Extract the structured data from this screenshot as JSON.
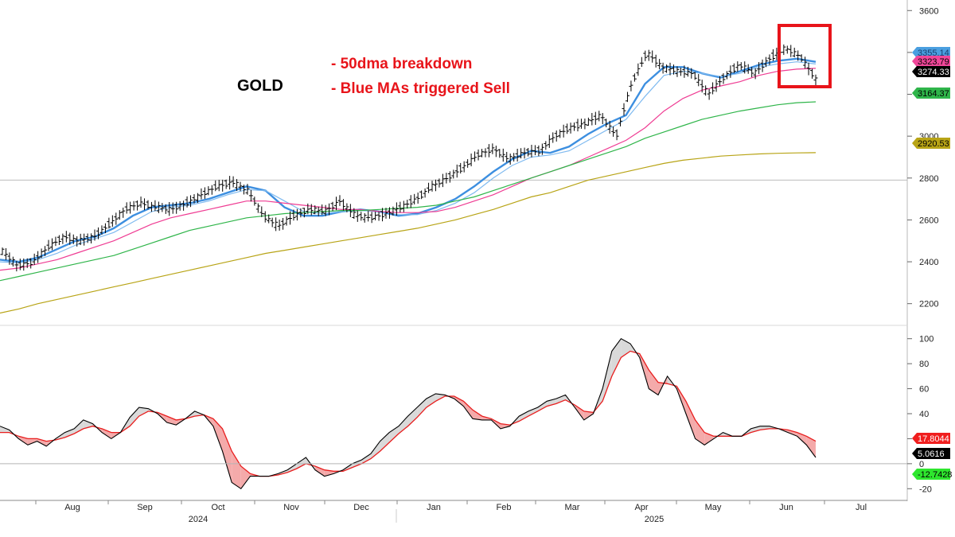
{
  "chart_data": [
    {
      "type": "ohlc-bar",
      "title": "GOLD",
      "annotations": [
        "- 50dma breakdown",
        "- Blue MAs triggered Sell"
      ],
      "ylim": [
        2100,
        3620
      ],
      "y_ticks": [
        2200,
        2400,
        2600,
        2800,
        3000,
        3200,
        3400,
        3600
      ],
      "x_ticks": [
        "Aug",
        "Sep",
        "Oct",
        "Nov",
        "Dec",
        "Jan",
        "Feb",
        "Mar",
        "Apr",
        "May",
        "Jun",
        "Jul"
      ],
      "x_years": [
        "2024",
        "2025"
      ],
      "reference_line": 2790,
      "last_values": [
        {
          "value": "3355.14",
          "color": "#4a9fe0",
          "text_color": "#1a3c6e"
        },
        {
          "value": "3323.79",
          "color": "#f0479a",
          "text_color": "#000000"
        },
        {
          "value": "3274.33",
          "color": "#000000",
          "text_color": "#ffffff"
        },
        {
          "value": "3164.37",
          "color": "#2fb54a",
          "text_color": "#000000"
        },
        {
          "value": "2920.53",
          "color": "#b8a416",
          "text_color": "#000000"
        }
      ],
      "price_path": [
        [
          "Jul",
          2450
        ],
        [
          "Jul",
          2380
        ],
        [
          "Aug",
          2400
        ],
        [
          "Aug",
          2470
        ],
        [
          "Aug",
          2520
        ],
        [
          "Aug",
          2500
        ],
        [
          "Sep",
          2520
        ],
        [
          "Sep",
          2580
        ],
        [
          "Sep",
          2650
        ],
        [
          "Sep",
          2680
        ],
        [
          "Sep",
          2660
        ],
        [
          "Oct",
          2650
        ],
        [
          "Oct",
          2680
        ],
        [
          "Oct",
          2720
        ],
        [
          "Oct",
          2760
        ],
        [
          "Oct",
          2780
        ],
        [
          "Nov",
          2740
        ],
        [
          "Nov",
          2620
        ],
        [
          "Nov",
          2570
        ],
        [
          "Nov",
          2620
        ],
        [
          "Nov",
          2650
        ],
        [
          "Dec",
          2640
        ],
        [
          "Dec",
          2690
        ],
        [
          "Dec",
          2620
        ],
        [
          "Dec",
          2610
        ],
        [
          "Dec",
          2630
        ],
        [
          "Jan",
          2660
        ],
        [
          "Jan",
          2700
        ],
        [
          "Jan",
          2760
        ],
        [
          "Jan",
          2800
        ],
        [
          "Feb",
          2850
        ],
        [
          "Feb",
          2910
        ],
        [
          "Feb",
          2940
        ],
        [
          "Feb",
          2890
        ],
        [
          "Feb",
          2920
        ],
        [
          "Mar",
          2930
        ],
        [
          "Mar",
          3000
        ],
        [
          "Mar",
          3040
        ],
        [
          "Mar",
          3060
        ],
        [
          "Mar",
          3100
        ],
        [
          "Apr",
          3000
        ],
        [
          "Apr",
          3250
        ],
        [
          "Apr",
          3400
        ],
        [
          "Apr",
          3330
        ],
        [
          "Apr",
          3310
        ],
        [
          "May",
          3300
        ],
        [
          "May",
          3200
        ],
        [
          "May",
          3280
        ],
        [
          "May",
          3340
        ],
        [
          "May",
          3300
        ],
        [
          "Jun",
          3370
        ],
        [
          "Jun",
          3420
        ],
        [
          "Jun",
          3380
        ],
        [
          "Jun",
          3274
        ]
      ],
      "moving_averages": [
        {
          "name": "blue-fast",
          "color": "#3d8fe0",
          "points": [
            2410,
            2400,
            2420,
            2460,
            2500,
            2520,
            2560,
            2620,
            2660,
            2670,
            2680,
            2700,
            2730,
            2760,
            2740,
            2660,
            2620,
            2620,
            2640,
            2650,
            2640,
            2620,
            2630,
            2660,
            2700,
            2760,
            2830,
            2890,
            2930,
            2920,
            2950,
            3010,
            3060,
            3100,
            3250,
            3330,
            3330,
            3300,
            3280,
            3310,
            3340,
            3360,
            3370,
            3355
          ]
        },
        {
          "name": "blue-slow",
          "color": "#7fbaf0",
          "points": [
            2400,
            2395,
            2410,
            2440,
            2480,
            2510,
            2540,
            2590,
            2640,
            2660,
            2670,
            2690,
            2720,
            2745,
            2740,
            2690,
            2640,
            2630,
            2640,
            2645,
            2640,
            2625,
            2625,
            2645,
            2680,
            2730,
            2800,
            2860,
            2900,
            2910,
            2930,
            2980,
            3030,
            3080,
            3190,
            3290,
            3310,
            3300,
            3285,
            3300,
            3330,
            3345,
            3355,
            3345
          ]
        },
        {
          "name": "pink-50",
          "color": "#ef3c93",
          "points": [
            2360,
            2370,
            2390,
            2410,
            2440,
            2470,
            2500,
            2540,
            2580,
            2610,
            2630,
            2650,
            2670,
            2690,
            2690,
            2680,
            2670,
            2660,
            2650,
            2650,
            2640,
            2635,
            2635,
            2640,
            2660,
            2690,
            2720,
            2760,
            2800,
            2830,
            2860,
            2900,
            2940,
            2980,
            3040,
            3120,
            3180,
            3220,
            3240,
            3260,
            3290,
            3310,
            3320,
            3324
          ]
        },
        {
          "name": "green-100",
          "color": "#2fb54a",
          "points": [
            2310,
            2330,
            2350,
            2370,
            2390,
            2410,
            2430,
            2460,
            2490,
            2520,
            2550,
            2570,
            2590,
            2610,
            2620,
            2630,
            2635,
            2640,
            2645,
            2645,
            2650,
            2655,
            2660,
            2670,
            2690,
            2710,
            2740,
            2770,
            2800,
            2830,
            2860,
            2890,
            2920,
            2950,
            2990,
            3020,
            3050,
            3080,
            3100,
            3120,
            3135,
            3150,
            3160,
            3164
          ]
        },
        {
          "name": "olive-200",
          "color": "#b8a416",
          "points": [
            2155,
            2175,
            2200,
            2220,
            2240,
            2260,
            2280,
            2300,
            2320,
            2340,
            2360,
            2380,
            2400,
            2420,
            2440,
            2455,
            2470,
            2485,
            2500,
            2515,
            2530,
            2545,
            2560,
            2580,
            2600,
            2625,
            2650,
            2680,
            2710,
            2730,
            2760,
            2790,
            2810,
            2830,
            2850,
            2870,
            2885,
            2895,
            2905,
            2910,
            2915,
            2918,
            2920,
            2921
          ]
        }
      ]
    },
    {
      "type": "oscillator",
      "ylim": [
        -30,
        110
      ],
      "y_ticks": [
        100,
        80,
        60,
        40,
        20,
        0,
        -20
      ],
      "zero_line": 0,
      "last_values": [
        {
          "value": "17.8044",
          "color": "#f01e1e",
          "text_color": "#ffffff"
        },
        {
          "value": "5.0616",
          "color": "#000000",
          "text_color": "#ffffff"
        },
        {
          "value": "-12.7428",
          "color": "#2ee62e",
          "text_color": "#000000"
        }
      ],
      "fast_line": [
        30,
        27,
        20,
        15,
        18,
        14,
        20,
        25,
        28,
        35,
        32,
        25,
        20,
        25,
        37,
        45,
        44,
        40,
        33,
        31,
        36,
        42,
        39,
        30,
        10,
        -15,
        -20,
        -10,
        -10,
        -10,
        -8,
        -5,
        0,
        5,
        -5,
        -10,
        -8,
        -5,
        0,
        3,
        8,
        18,
        25,
        30,
        38,
        45,
        52,
        56,
        55,
        52,
        46,
        36,
        35,
        35,
        28,
        30,
        38,
        42,
        45,
        50,
        52,
        55,
        45,
        35,
        40,
        60,
        90,
        100,
        96,
        85,
        60,
        55,
        70,
        60,
        40,
        20,
        15,
        20,
        25,
        22,
        22,
        28,
        30,
        30,
        28,
        25,
        22,
        15,
        5
      ],
      "slow_line": [
        25,
        25,
        22,
        20,
        20,
        18,
        19,
        21,
        24,
        28,
        30,
        28,
        25,
        25,
        30,
        38,
        42,
        41,
        38,
        35,
        36,
        38,
        39,
        36,
        28,
        10,
        -2,
        -8,
        -10,
        -10,
        -9,
        -7,
        -4,
        0,
        -2,
        -5,
        -6,
        -6,
        -3,
        0,
        4,
        10,
        17,
        24,
        30,
        37,
        45,
        50,
        54,
        54,
        50,
        43,
        38,
        36,
        32,
        31,
        34,
        38,
        42,
        46,
        48,
        51,
        47,
        42,
        41,
        50,
        70,
        85,
        90,
        88,
        75,
        65,
        64,
        62,
        50,
        35,
        25,
        22,
        22,
        22,
        22,
        25,
        27,
        28,
        28,
        27,
        25,
        22,
        18
      ]
    }
  ]
}
